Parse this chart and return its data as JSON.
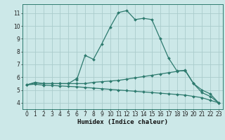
{
  "title": "",
  "xlabel": "Humidex (Indice chaleur)",
  "bg_color": "#cce8e8",
  "grid_color": "#aacccc",
  "line_color": "#2d7a6e",
  "xlim": [
    -0.5,
    23.5
  ],
  "ylim": [
    3.5,
    11.7
  ],
  "yticks": [
    4,
    5,
    6,
    7,
    8,
    9,
    10,
    11
  ],
  "xticks": [
    0,
    1,
    2,
    3,
    4,
    5,
    6,
    7,
    8,
    9,
    10,
    11,
    12,
    13,
    14,
    15,
    16,
    17,
    18,
    19,
    20,
    21,
    22,
    23
  ],
  "series1_x": [
    0,
    1,
    2,
    3,
    4,
    5,
    6,
    6,
    7,
    8,
    9,
    10,
    11,
    12,
    13,
    14,
    15,
    16,
    17,
    18,
    19,
    20,
    21,
    22,
    23
  ],
  "series1_y": [
    5.4,
    5.6,
    5.5,
    5.5,
    5.5,
    5.5,
    5.9,
    5.8,
    7.7,
    7.4,
    8.6,
    9.9,
    11.05,
    11.2,
    10.5,
    10.6,
    10.5,
    9.0,
    7.5,
    6.5,
    6.5,
    5.5,
    4.8,
    4.5,
    4.0
  ],
  "series2_x": [
    0,
    1,
    2,
    3,
    4,
    5,
    6,
    7,
    8,
    9,
    10,
    11,
    12,
    13,
    14,
    15,
    16,
    17,
    18,
    19,
    20,
    21,
    22,
    23
  ],
  "series2_y": [
    5.4,
    5.55,
    5.5,
    5.5,
    5.5,
    5.5,
    5.5,
    5.5,
    5.6,
    5.65,
    5.7,
    5.75,
    5.85,
    5.95,
    6.05,
    6.15,
    6.25,
    6.35,
    6.45,
    6.55,
    5.5,
    5.0,
    4.7,
    4.0
  ],
  "series3_x": [
    0,
    1,
    2,
    3,
    4,
    5,
    6,
    7,
    8,
    9,
    10,
    11,
    12,
    13,
    14,
    15,
    16,
    17,
    18,
    19,
    20,
    21,
    22,
    23
  ],
  "series3_y": [
    5.4,
    5.45,
    5.38,
    5.35,
    5.32,
    5.28,
    5.25,
    5.2,
    5.15,
    5.1,
    5.05,
    5.0,
    4.95,
    4.9,
    4.85,
    4.8,
    4.75,
    4.7,
    4.65,
    4.6,
    4.5,
    4.4,
    4.2,
    4.0
  ]
}
